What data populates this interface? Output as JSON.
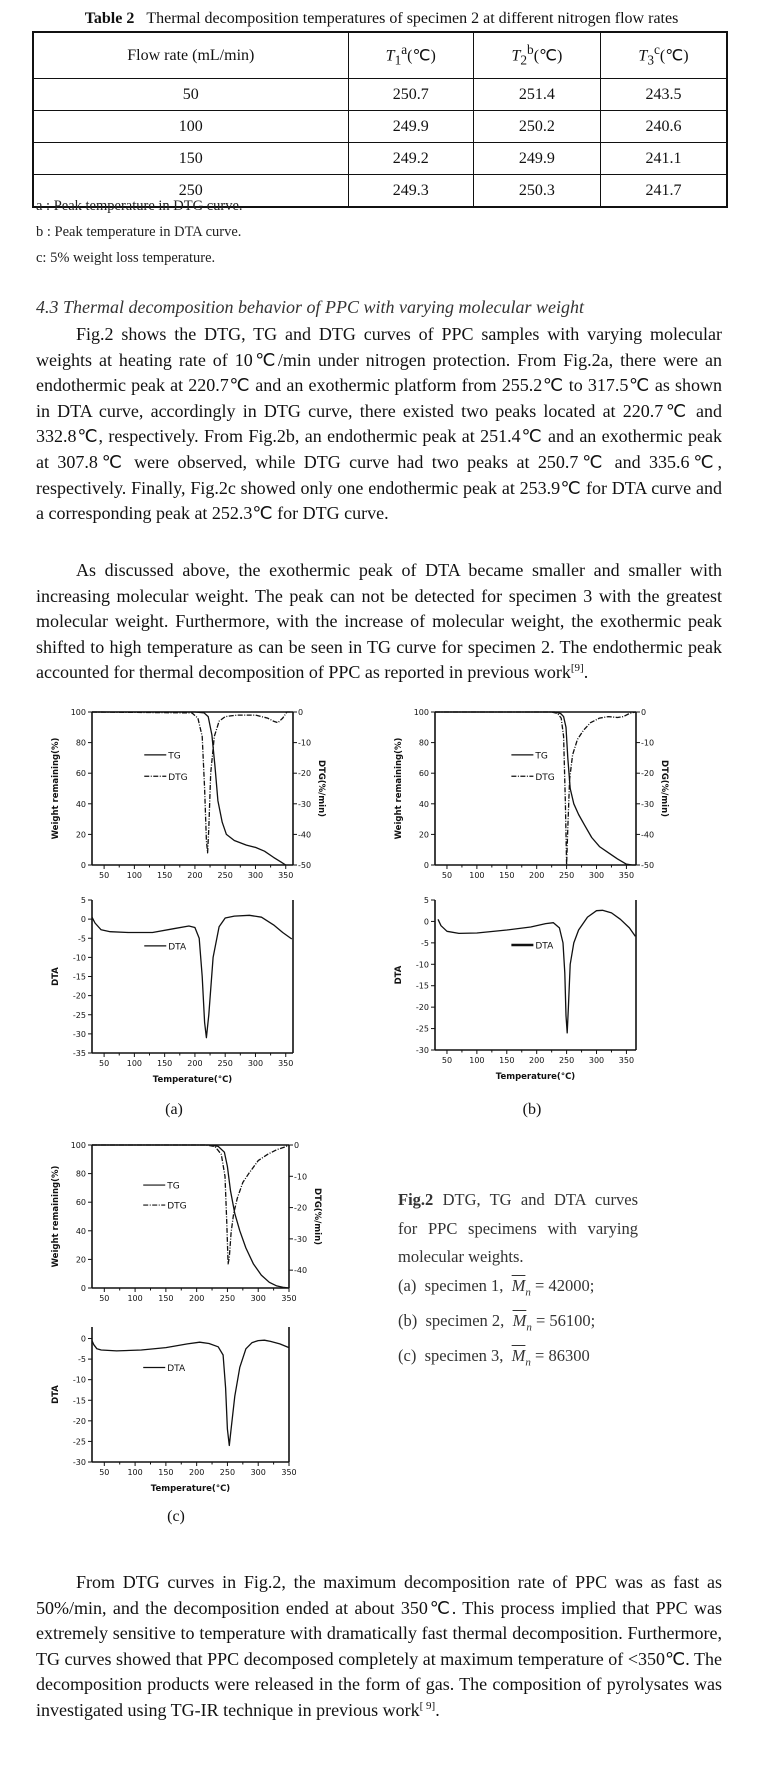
{
  "table": {
    "label": "Table 2",
    "title": "Thermal decomposition temperatures of specimen 2 at different nitrogen flow rates",
    "headers": {
      "flow": "Flow rate (mL/min)",
      "t1": {
        "sym": "T",
        "sub": "1",
        "sup": "a",
        "unit": "(℃)"
      },
      "t2": {
        "sym": "T",
        "sub": "2",
        "sup": "b",
        "unit": "(℃)"
      },
      "t3": {
        "sym": "T",
        "sub": "3",
        "sup": "c",
        "unit": "(℃)"
      }
    },
    "rows": [
      [
        "50",
        "250.7",
        "251.4",
        "243.5"
      ],
      [
        "100",
        "249.9",
        "250.2",
        "240.6"
      ],
      [
        "150",
        "249.2",
        "249.9",
        "241.1"
      ],
      [
        "250",
        "249.3",
        "250.3",
        "241.7"
      ]
    ],
    "notes": [
      "a : Peak temperature in DTG curve.",
      "b : Peak temperature in DTA curve.",
      "c: 5% weight loss temperature."
    ]
  },
  "section": {
    "heading": "4.3 Thermal decomposition behavior of PPC with varying molecular weight",
    "para1": "Fig.2 shows the DTG, TG and DTG curves of PPC samples with varying molecular weights at heating rate of 10℃/min under nitrogen protection. From Fig.2a, there were an endothermic peak at 220.7℃ and an exothermic platform from 255.2℃ to 317.5℃ as shown in DTA curve, accordingly in DTG curve, there existed two peaks located at 220.7℃ and 332.8℃, respectively. From Fig.2b, an endothermic peak at 251.4℃ and an exothermic peak at 307.8℃ were observed, while DTG curve had two peaks at 250.7℃ and 335.6℃, respectively. Finally, Fig.2c showed only one endothermic peak at 253.9℃ for DTA curve and a corresponding peak at 252.3℃ for DTG curve.",
    "para2": "As discussed above, the exothermic peak of DTA became smaller and smaller with increasing molecular weight. The peak can not be detected for specimen 3 with the greatest molecular weight. Furthermore, with the increase of molecular weight, the exothermic peak shifted to high temperature as can be seen in TG curve for specimen 2. The endothermic peak accounted for thermal decomposition of PPC as reported in previous work",
    "para2_ref": "[9]",
    "para2_end": ".",
    "para3": "From DTG curves in Fig.2, the maximum decomposition rate of PPC was as fast as 50%/min, and the decomposition ended at about 350℃. This process implied that PPC was extremely sensitive to temperature with dramatically fast thermal decomposition. Furthermore, TG curves showed that PPC decomposed completely at maximum temperature of <350℃. The decomposition products were released in the form of gas. The composition of pyrolysates was investigated using TG-IR technique in previous work",
    "para3_ref": "[ 9]",
    "para3_end": "."
  },
  "figure": {
    "sublabels": [
      "(a)",
      "(b)",
      "(c)"
    ],
    "caption": {
      "label": "Fig.2",
      "text1": "DTG, TG and DTA curves",
      "text2": "for PPC specimens with varying",
      "text3": "molecular weights.",
      "items": [
        {
          "tag": "(a)",
          "specimen": "specimen 1,",
          "mn": "M",
          "sub": "n",
          "value": "= 42000;"
        },
        {
          "tag": "(b)",
          "specimen": "specimen 2,",
          "mn": "M",
          "sub": "n",
          "value": "= 56100;"
        },
        {
          "tag": "(c)",
          "specimen": "specimen 3,",
          "mn": "M",
          "sub": "n",
          "value": "= 86300"
        }
      ]
    }
  },
  "chart_data": [
    {
      "panel": "(a)",
      "type": "line",
      "upper": {
        "xlim": [
          30,
          362
        ],
        "xticks": [
          50,
          100,
          150,
          200,
          250,
          300,
          350
        ],
        "ylim": [
          0,
          100
        ],
        "yticks": [
          0,
          20,
          40,
          60,
          80,
          100
        ],
        "ylabel": "Weight remaining(%)",
        "y2lim": [
          -50,
          0
        ],
        "y2ticks": [
          0,
          -10,
          -20,
          -30,
          -40,
          -50
        ],
        "y2label": "DTG(%/min)",
        "legend": "upper-left-center",
        "series": [
          {
            "name": "TG",
            "axis": "left",
            "style": "solid",
            "x": [
              30,
              200,
              215,
              222,
              228,
              233,
              238,
              245,
              252,
              265,
              285,
              300,
              315,
              330,
              342,
              350
            ],
            "y": [
              100,
              100,
              99.5,
              97,
              85,
              65,
              42,
              28,
              20,
              16,
              13,
              11.5,
              9,
              5,
              2,
              0
            ]
          },
          {
            "name": "DTG",
            "axis": "right",
            "style": "dash-dot",
            "x": [
              30,
              195,
              205,
              212,
              216,
              219,
              221,
              223,
              226,
              232,
              240,
              250,
              270,
              300,
              320,
              330,
              337,
              345,
              352,
              360
            ],
            "y": [
              0,
              -0.3,
              -2,
              -8,
              -25,
              -42,
              -46,
              -38,
              -20,
              -8,
              -3,
              -1.5,
              -1,
              -1,
              -2,
              -3,
              -3.5,
              -2,
              0,
              0
            ]
          }
        ]
      },
      "lower": {
        "xlim": [
          30,
          362
        ],
        "xticks": [
          50,
          100,
          150,
          200,
          250,
          300,
          350
        ],
        "xlabel": "Temperature(°C)",
        "ylim": [
          -35,
          5
        ],
        "yticks": [
          5,
          0,
          -5,
          -10,
          -15,
          -20,
          -25,
          -30,
          -35
        ],
        "ylabel": "DTA",
        "series": [
          {
            "name": "DTA",
            "axis": "left",
            "style": "solid",
            "x": [
              30,
              35,
              45,
              60,
              90,
              130,
              165,
              190,
              200,
              207,
              212,
              216,
              219,
              223,
              230,
              240,
              250,
              265,
              290,
              310,
              330,
              345,
              360
            ],
            "y": [
              0.5,
              -1,
              -2.8,
              -3.3,
              -3.5,
              -3.5,
              -2.5,
              -1.8,
              -2.2,
              -5,
              -15,
              -27,
              -31,
              -25,
              -10,
              -2,
              0.3,
              0.8,
              1,
              0.5,
              -1.5,
              -3.5,
              -5.2
            ]
          }
        ]
      }
    },
    {
      "panel": "(b)",
      "type": "line",
      "upper": {
        "xlim": [
          30,
          366
        ],
        "xticks": [
          50,
          100,
          150,
          200,
          250,
          300,
          350
        ],
        "ylim": [
          0,
          100
        ],
        "yticks": [
          0,
          20,
          40,
          60,
          80,
          100
        ],
        "ylabel": "Weight remaining(%)",
        "y2lim": [
          -50,
          0
        ],
        "y2ticks": [
          0,
          -10,
          -20,
          -30,
          -40,
          -50
        ],
        "y2label": "DTG(%/min)",
        "legend": "upper-center",
        "series": [
          {
            "name": "TG",
            "axis": "left",
            "style": "solid",
            "x": [
              30,
              230,
              240,
              245,
              249,
              252,
              256,
              262,
              270,
              280,
              292,
              305,
              320,
              335,
              350,
              360,
              365
            ],
            "y": [
              100,
              100,
              99,
              97,
              90,
              70,
              50,
              40,
              33,
              26,
              18,
              12,
              8,
              4,
              0.5,
              0,
              0
            ]
          },
          {
            "name": "DTG",
            "axis": "right",
            "style": "dash-dot",
            "x": [
              30,
              225,
              235,
              241,
              245,
              248,
              250,
              252,
              255,
              260,
              268,
              278,
              290,
              305,
              320,
              335,
              345,
              355,
              365
            ],
            "y": [
              0,
              0,
              -0.5,
              -2,
              -8,
              -30,
              -50,
              -38,
              -22,
              -14,
              -9,
              -6,
              -3.5,
              -2,
              -1.5,
              -1.8,
              -1.5,
              -0.5,
              0
            ]
          }
        ]
      },
      "lower": {
        "xlim": [
          30,
          366
        ],
        "xticks": [
          50,
          100,
          150,
          200,
          250,
          300,
          350
        ],
        "xlabel": "Temperature(°C)",
        "ylim": [
          -30,
          5
        ],
        "yticks": [
          5,
          0,
          -5,
          -10,
          -15,
          -20,
          -25,
          -30
        ],
        "ylabel": "DTA",
        "series": [
          {
            "name": "DTA",
            "axis": "left",
            "style": "solid",
            "x": [
              35,
              40,
              50,
              70,
              100,
              150,
              190,
              215,
              228,
              238,
              244,
              247,
              249,
              251,
              253,
              256,
              262,
              270,
              285,
              300,
              310,
              325,
              340,
              355,
              365
            ],
            "y": [
              0.5,
              -1,
              -2.3,
              -2.8,
              -2.7,
              -2,
              -1.3,
              -0.5,
              -0.3,
              -1.5,
              -5,
              -12,
              -22,
              -26,
              -20,
              -10,
              -5,
              -2,
              1,
              2.5,
              2.6,
              2,
              0.5,
              -1.5,
              -3.5
            ]
          }
        ]
      }
    },
    {
      "panel": "(c)",
      "type": "line",
      "upper": {
        "xlim": [
          30,
          350
        ],
        "xticks": [
          50,
          100,
          150,
          200,
          250,
          300,
          350
        ],
        "ylim": [
          0,
          100
        ],
        "yticks": [
          0,
          20,
          40,
          60,
          80,
          100
        ],
        "ylabel": "Weight remaining(%)",
        "y2lim": [
          -45.7,
          0
        ],
        "y2ticks": [
          0,
          -10,
          -20,
          -30,
          -40
        ],
        "y2label": "DTG(%/min)",
        "legend": "upper-left-center",
        "series": [
          {
            "name": "TG",
            "axis": "left",
            "style": "solid",
            "x": [
              30,
              220,
              235,
              245,
              250,
              255,
              262,
              270,
              280,
              292,
              305,
              318,
              330,
              340,
              350
            ],
            "y": [
              100,
              100,
              99,
              95,
              85,
              68,
              52,
              40,
              28,
              17,
              9,
              4,
              1.5,
              0.5,
              0
            ]
          },
          {
            "name": "DTG",
            "axis": "right",
            "style": "dash-dot",
            "x": [
              30,
              215,
              230,
              240,
              246,
              249,
              251,
              253,
              256,
              260,
              266,
              275,
              285,
              300,
              315,
              330,
              345,
              350
            ],
            "y": [
              0,
              0,
              -0.5,
              -3,
              -10,
              -25,
              -38,
              -36,
              -28,
              -22,
              -17,
              -12,
              -9,
              -5,
              -3,
              -1.5,
              -0.5,
              0
            ]
          }
        ]
      },
      "lower": {
        "xlim": [
          30,
          350
        ],
        "xticks": [
          50,
          100,
          150,
          200,
          250,
          300,
          350
        ],
        "xlabel": "Temperature(°C)",
        "ylim": [
          -30,
          2.8
        ],
        "yticks": [
          0,
          -5,
          -10,
          -15,
          -20,
          -25,
          -30
        ],
        "ylabel": "DTA",
        "series": [
          {
            "name": "DTA",
            "axis": "left",
            "style": "solid",
            "x": [
              30,
              33,
              38,
              45,
              70,
              110,
              150,
              185,
              205,
              220,
              235,
              243,
              247,
              250,
              253,
              256,
              262,
              270,
              280,
              290,
              300,
              310,
              320,
              335,
              350
            ],
            "y": [
              -0.5,
              -1.5,
              -2.5,
              -2.8,
              -3,
              -2.8,
              -2.2,
              -1.3,
              -0.9,
              -1.2,
              -2,
              -4,
              -12,
              -22,
              -26,
              -22,
              -14,
              -7,
              -2.5,
              -1,
              -0.5,
              -0.4,
              -0.7,
              -1.3,
              -2.2
            ]
          }
        ]
      }
    }
  ]
}
